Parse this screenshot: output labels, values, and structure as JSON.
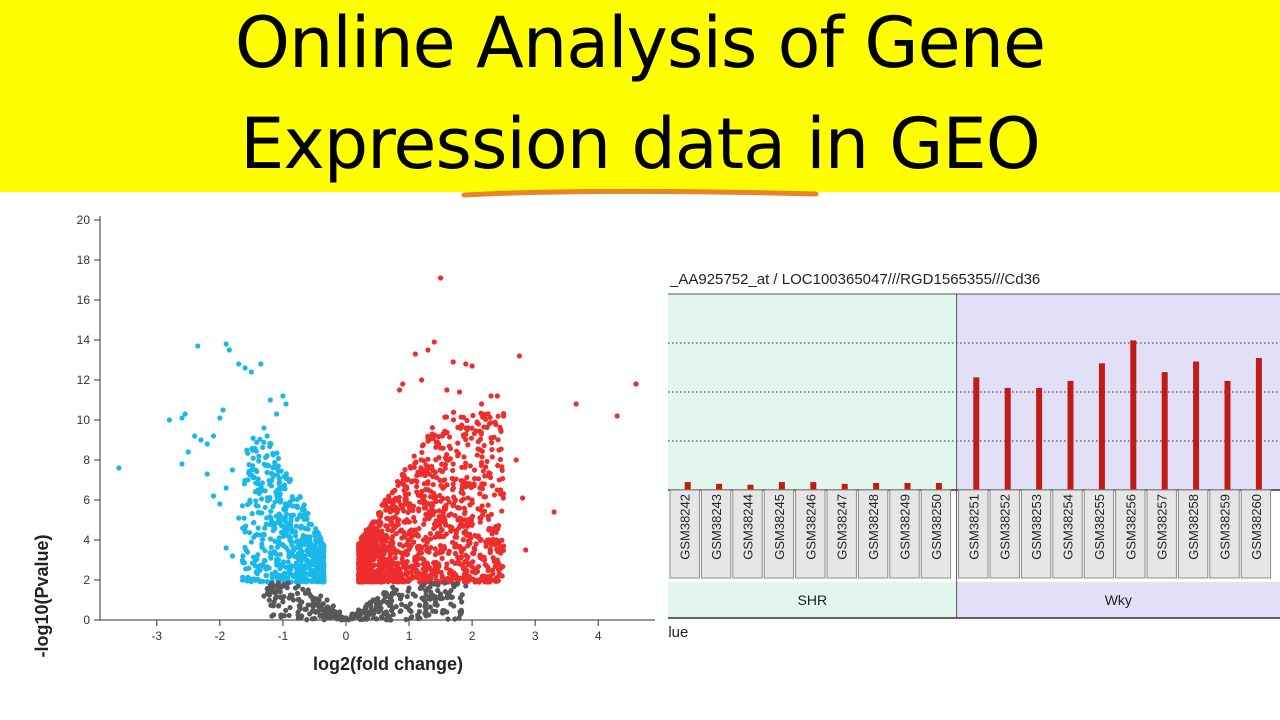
{
  "title": {
    "line1": "Online Analysis of Gene",
    "line2": "Expression data in GEO"
  },
  "colors": {
    "banner": "#ffff00",
    "underline": "#e8852a",
    "down": "#1ab8ea",
    "up": "#ee2d2d",
    "ns": "#585858",
    "bar": "#c11b17",
    "shr_bg": "#e2f6ee",
    "wky_bg": "#e1e0f6"
  },
  "chart_data": [
    {
      "type": "scatter",
      "xlabel": "log2(fold change)",
      "ylabel": "-log10(Pvalue)",
      "xlim": [
        -3.9,
        4.9
      ],
      "ylim": [
        0,
        20
      ],
      "xticks": [
        -3,
        -2,
        -1,
        0,
        1,
        2,
        3,
        4
      ],
      "yticks": [
        0,
        2,
        4,
        6,
        8,
        10,
        12,
        14,
        16,
        18,
        20
      ],
      "grid": false,
      "series": [
        {
          "color": "#1ab8ea",
          "points": [
            [
              -3.6,
              7.6
            ],
            [
              -2.8,
              10
            ],
            [
              -2.6,
              10.1
            ],
            [
              -2.55,
              10.3
            ],
            [
              -2.4,
              9.2
            ],
            [
              -2.35,
              13.7
            ],
            [
              -2.3,
              9
            ],
            [
              -2.2,
              8.8
            ],
            [
              -2.1,
              9.2
            ],
            [
              -2,
              10.1
            ],
            [
              -1.95,
              10.5
            ],
            [
              -1.9,
              13.8
            ],
            [
              -1.85,
              13.5
            ],
            [
              -1.7,
              12.8
            ],
            [
              -1.6,
              12.6
            ],
            [
              -1.5,
              12.4
            ],
            [
              -1.35,
              12.8
            ],
            [
              -2.6,
              7.8
            ],
            [
              -2.5,
              8.4
            ],
            [
              -2.2,
              7.3
            ],
            [
              -2.1,
              6.2
            ],
            [
              -2,
              5.8
            ],
            [
              -1.9,
              6.6
            ],
            [
              -1.8,
              7.5
            ],
            [
              -1.7,
              5.1
            ],
            [
              -1.6,
              4.4
            ],
            [
              -1.5,
              3.9
            ],
            [
              -1.8,
              3.2
            ],
            [
              -1.9,
              3.6
            ],
            [
              -1.2,
              11
            ],
            [
              -1.1,
              10.3
            ],
            [
              -1,
              11.2
            ],
            [
              -0.95,
              10.8
            ],
            [
              -1.3,
              9.6
            ],
            [
              -1.25,
              9.2
            ]
          ]
        },
        {
          "color": "#ee2d2d",
          "points": [
            [
              1.5,
              17.1
            ],
            [
              1.4,
              13.9
            ],
            [
              1.3,
              13.5
            ],
            [
              1.1,
              13.3
            ],
            [
              1.7,
              12.9
            ],
            [
              1.9,
              12.8
            ],
            [
              2.0,
              12.7
            ],
            [
              2.75,
              13.2
            ],
            [
              0.9,
              11.8
            ],
            [
              0.85,
              11.5
            ],
            [
              1.2,
              12
            ],
            [
              1.6,
              11.5
            ],
            [
              1.8,
              11.4
            ],
            [
              2.3,
              11.2
            ],
            [
              2.4,
              11.2
            ],
            [
              2.15,
              10.8
            ],
            [
              3.65,
              10.8
            ],
            [
              4.6,
              11.8
            ],
            [
              4.3,
              10.2
            ],
            [
              2.5,
              10.2
            ],
            [
              2.1,
              9.8
            ],
            [
              1.9,
              9.6
            ],
            [
              2.7,
              8
            ],
            [
              3.3,
              5.4
            ],
            [
              2.8,
              6.1
            ],
            [
              2.85,
              3.5
            ],
            [
              2.4,
              6.5
            ],
            [
              2.45,
              6.3
            ],
            [
              2.2,
              7.2
            ],
            [
              1.7,
              7.8
            ],
            [
              1.5,
              8.6
            ],
            [
              1.3,
              9.1
            ],
            [
              1.8,
              5.6
            ],
            [
              2,
              6
            ],
            [
              1.5,
              4.9
            ],
            [
              2.1,
              4.2
            ],
            [
              2.3,
              3.9
            ],
            [
              2.5,
              3.7
            ],
            [
              2.4,
              3
            ],
            [
              1.6,
              2.8
            ],
            [
              0.4,
              2.6
            ],
            [
              0.25,
              2.2
            ]
          ]
        },
        {
          "color": "#585858",
          "points": [
            [
              -1.2,
              1.8
            ],
            [
              -1,
              1.7
            ],
            [
              -0.8,
              1.6
            ],
            [
              -0.6,
              1.5
            ],
            [
              -0.4,
              1.2
            ],
            [
              -0.3,
              1
            ],
            [
              -0.2,
              0.7
            ],
            [
              -0.1,
              0.4
            ],
            [
              0,
              0.1
            ],
            [
              0.1,
              0.3
            ],
            [
              0.2,
              0.5
            ],
            [
              0.4,
              0.9
            ],
            [
              0.6,
              1.3
            ],
            [
              0.8,
              1.5
            ],
            [
              1,
              1.6
            ],
            [
              1.2,
              1.7
            ],
            [
              1.4,
              1.8
            ],
            [
              1.7,
              1.8
            ],
            [
              1.9,
              1.7
            ],
            [
              -1.3,
              1.2
            ],
            [
              -0.9,
              1.1
            ],
            [
              -0.7,
              0.9
            ],
            [
              0.5,
              0.6
            ],
            [
              0.7,
              0.8
            ],
            [
              1.1,
              1.2
            ],
            [
              1.5,
              1.3
            ]
          ]
        }
      ]
    },
    {
      "type": "bar",
      "title": "_AA925752_at / LOC100365047///RGD1565355///Cd36",
      "ylabel_fragment": "alue",
      "ylim": [
        0,
        100
      ],
      "categories": [
        "GSM38242",
        "GSM38243",
        "GSM38244",
        "GSM38245",
        "GSM38246",
        "GSM38247",
        "GSM38248",
        "GSM38249",
        "GSM38250",
        "GSM38251",
        "GSM38252",
        "GSM38253",
        "GSM38254",
        "GSM38255",
        "GSM38256",
        "GSM38257",
        "GSM38258",
        "GSM38259",
        "GSM38260"
      ],
      "values": [
        4.5,
        3.5,
        3,
        4.5,
        4.5,
        3.5,
        4,
        4,
        4,
        64,
        58,
        58,
        62,
        72,
        85,
        67,
        73,
        62,
        75
      ],
      "groups": [
        {
          "name": "SHR",
          "count": 9
        },
        {
          "name": "Wky",
          "count": 10
        }
      ]
    }
  ]
}
